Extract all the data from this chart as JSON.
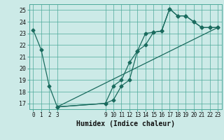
{
  "title": "",
  "xlabel": "Humidex (Indice chaleur)",
  "bg_color": "#cceae7",
  "grid_color": "#4da89a",
  "line_color": "#1a6b5e",
  "xlim": [
    -0.5,
    23.5
  ],
  "ylim": [
    16.5,
    25.5
  ],
  "xticks": [
    0,
    1,
    2,
    3,
    9,
    10,
    11,
    12,
    13,
    14,
    15,
    16,
    17,
    18,
    19,
    20,
    21,
    22,
    23
  ],
  "yticks": [
    17,
    18,
    19,
    20,
    21,
    22,
    23,
    24,
    25
  ],
  "line1_x": [
    0,
    1,
    2,
    3,
    9,
    10,
    11,
    12,
    13,
    14,
    15,
    16,
    17,
    18,
    19,
    20,
    21,
    22,
    23
  ],
  "line1_y": [
    23.3,
    21.6,
    18.5,
    16.7,
    17.0,
    18.5,
    19.0,
    20.5,
    21.5,
    23.0,
    23.1,
    23.2,
    25.1,
    24.5,
    24.5,
    24.0,
    23.5,
    23.5,
    23.5
  ],
  "line2_x": [
    3,
    9,
    10,
    11,
    12,
    13,
    14,
    15,
    16,
    17,
    18,
    19,
    20,
    21,
    22,
    23
  ],
  "line2_y": [
    16.7,
    17.0,
    17.3,
    18.5,
    19.0,
    21.5,
    22.0,
    23.1,
    23.2,
    25.1,
    24.5,
    24.5,
    24.0,
    23.5,
    23.5,
    23.5
  ],
  "line3_x": [
    3,
    23
  ],
  "line3_y": [
    16.7,
    23.5
  ]
}
